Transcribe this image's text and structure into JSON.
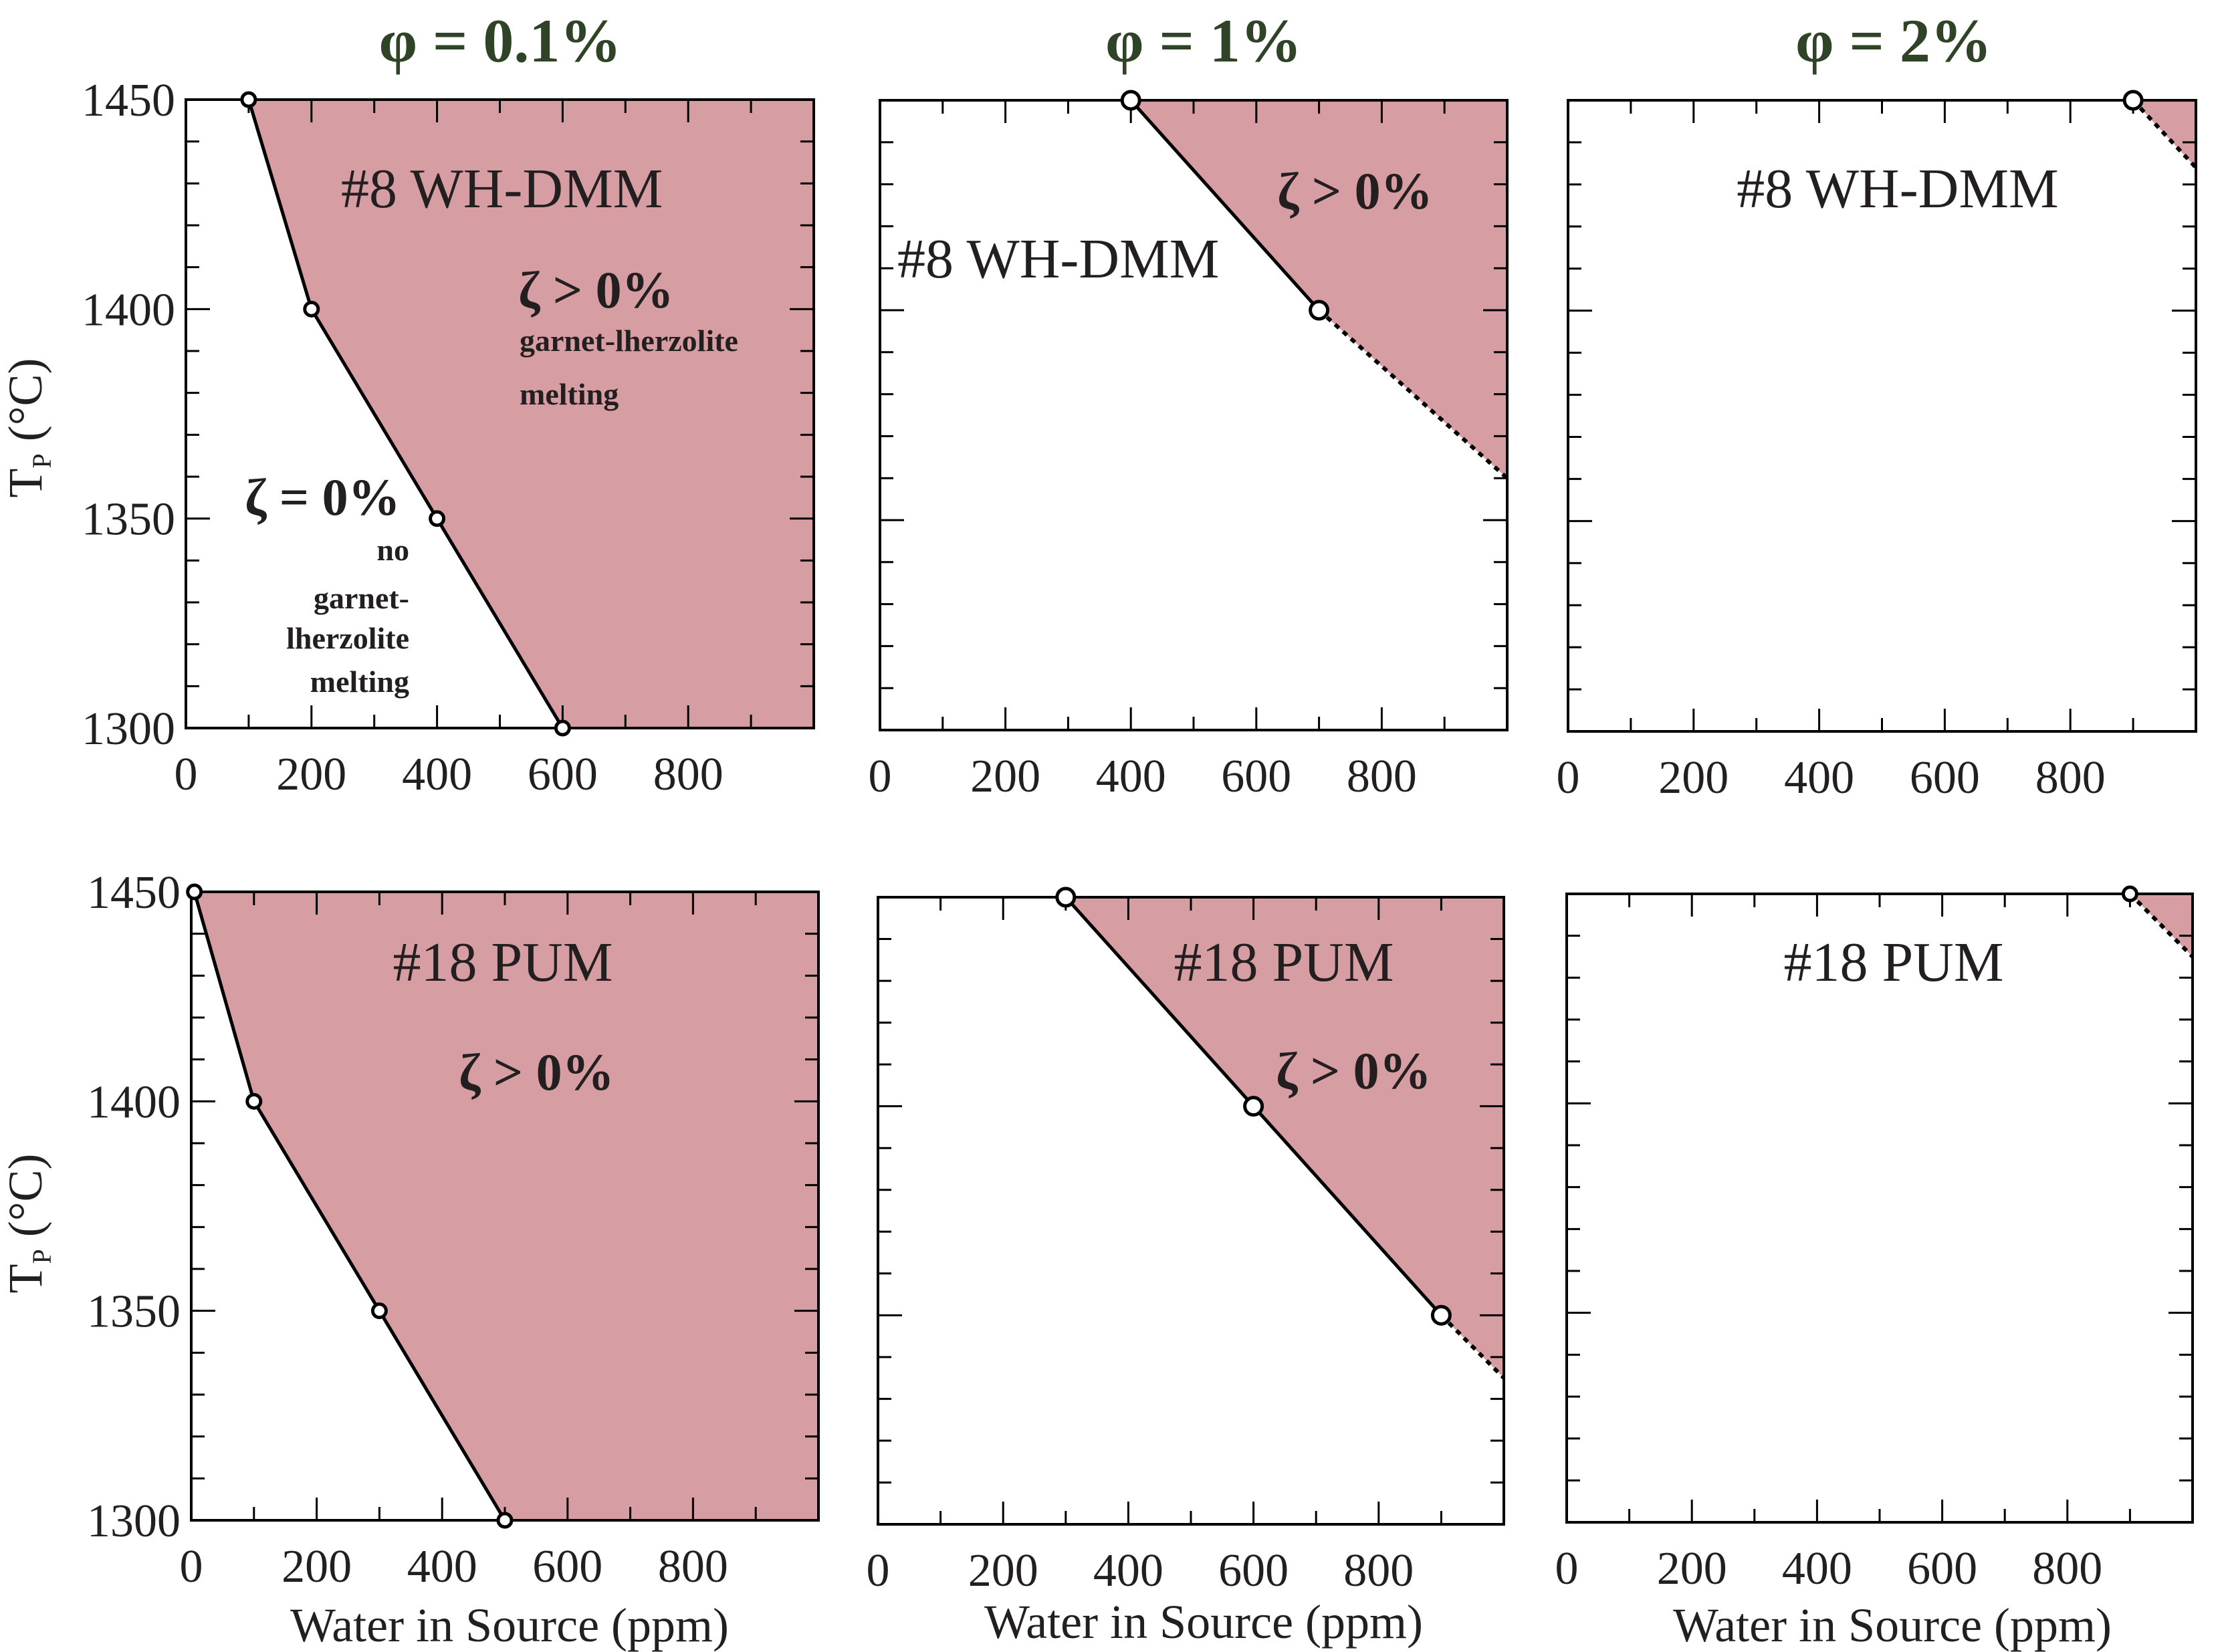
{
  "colors": {
    "title": "#2f4426",
    "fill": "#d69ea2",
    "line": "#000000",
    "text": "#231f20"
  },
  "columns": [
    {
      "title": "φ = 0.1%"
    },
    {
      "title": "φ = 1%"
    },
    {
      "title": "φ = 2%"
    }
  ],
  "y_axis_label": {
    "main": "T",
    "sub": "P",
    "unit": " (°C)"
  },
  "x_axis_label": "Water in Source (ppm)",
  "chart_data": [
    {
      "type": "area",
      "panel": "top-left",
      "sample": "#8 WH-DMM",
      "phi": "0.1%",
      "xlim": [
        0,
        1000
      ],
      "ylim": [
        1300,
        1450
      ],
      "xticks": [
        0,
        200,
        400,
        600,
        800
      ],
      "yticks": [
        1300,
        1350,
        1400,
        1450
      ],
      "boundary": [
        [
          100,
          1450
        ],
        [
          200,
          1400
        ],
        [
          400,
          1350
        ],
        [
          600,
          1300
        ]
      ],
      "extrapolated": [],
      "labels": {
        "sample": "#8 WH-DMM",
        "positive": "ζ > 0%",
        "positive_note": [
          "garnet-lherzolite",
          "melting"
        ],
        "zero": "ζ = 0%",
        "zero_note": [
          "no",
          "garnet-",
          "lherzolite",
          "melting"
        ]
      }
    },
    {
      "type": "area",
      "panel": "top-middle",
      "sample": "#8 WH-DMM",
      "phi": "1%",
      "xlim": [
        0,
        1000
      ],
      "ylim": [
        1300,
        1450
      ],
      "xticks": [
        0,
        200,
        400,
        600,
        800
      ],
      "boundary": [
        [
          400,
          1450
        ],
        [
          700,
          1400
        ]
      ],
      "extrapolated": [
        [
          700,
          1400
        ],
        [
          1000,
          1360
        ]
      ],
      "labels": {
        "sample": "#8 WH-DMM",
        "positive": "ζ > 0%"
      }
    },
    {
      "type": "area",
      "panel": "top-right",
      "sample": "#8 WH-DMM",
      "phi": "2%",
      "xlim": [
        0,
        1000
      ],
      "ylim": [
        1300,
        1450
      ],
      "xticks": [
        0,
        200,
        400,
        600,
        800
      ],
      "boundary": [
        [
          900,
          1450
        ]
      ],
      "extrapolated": [
        [
          900,
          1450
        ],
        [
          1000,
          1434
        ]
      ],
      "labels": {
        "sample": "#8 WH-DMM"
      }
    },
    {
      "type": "area",
      "panel": "bottom-left",
      "sample": "#18 PUM",
      "phi": "0.1%",
      "xlim": [
        0,
        1000
      ],
      "ylim": [
        1300,
        1450
      ],
      "xticks": [
        0,
        200,
        400,
        600,
        800
      ],
      "yticks": [
        1300,
        1350,
        1400,
        1450
      ],
      "boundary": [
        [
          5,
          1450
        ],
        [
          100,
          1400
        ],
        [
          300,
          1350
        ],
        [
          500,
          1300
        ]
      ],
      "extrapolated": [],
      "labels": {
        "sample": "#18 PUM",
        "positive": "ζ > 0%"
      }
    },
    {
      "type": "area",
      "panel": "bottom-middle",
      "sample": "#18 PUM",
      "phi": "1%",
      "xlim": [
        0,
        1000
      ],
      "ylim": [
        1300,
        1450
      ],
      "xticks": [
        0,
        200,
        400,
        600,
        800
      ],
      "boundary": [
        [
          300,
          1450
        ],
        [
          600,
          1400
        ],
        [
          900,
          1350
        ]
      ],
      "extrapolated": [
        [
          900,
          1350
        ],
        [
          1000,
          1335
        ]
      ],
      "labels": {
        "sample": "#18 PUM",
        "positive": "ζ > 0%"
      }
    },
    {
      "type": "area",
      "panel": "bottom-right",
      "sample": "#18 PUM",
      "phi": "2%",
      "xlim": [
        0,
        1000
      ],
      "ylim": [
        1300,
        1450
      ],
      "xticks": [
        0,
        200,
        400,
        600,
        800
      ],
      "boundary": [
        [
          900,
          1450
        ]
      ],
      "extrapolated": [
        [
          900,
          1450
        ],
        [
          1000,
          1435
        ]
      ],
      "labels": {
        "sample": "#18 PUM"
      }
    }
  ]
}
